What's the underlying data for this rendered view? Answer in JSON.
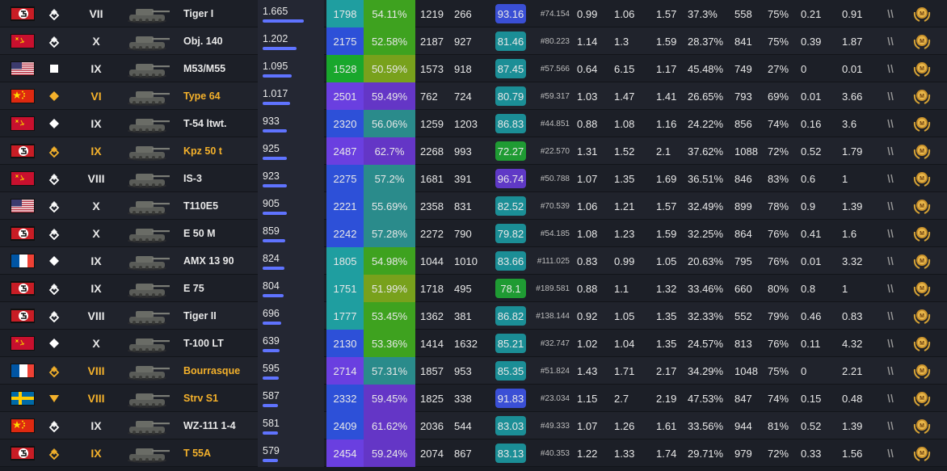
{
  "colors": {
    "premium": "#f4b12b",
    "normal": "#ffffff",
    "wn8_teal": "#1f9ea0",
    "wn8_blue": "#2d50d8",
    "wn8_green": "#19a72c",
    "wn8_purple": "#6a3fe0",
    "wr_teal": "#2a8b8b",
    "wr_green": "#3ea21f",
    "wr_olive": "#78a11c",
    "wr_purple": "#6436c6",
    "moe_purple": "#5f39c6",
    "moe_blue": "#3a4fd5",
    "moe_teal": "#1b8e96",
    "moe_green": "#1f9b33"
  },
  "rows": [
    {
      "flag": "germany",
      "class_icon": "heavy-icon",
      "tier": "VII",
      "name": "Tiger I",
      "premium": false,
      "battles": "1.665",
      "bar": 0.78,
      "wn8": "1798",
      "wr": "54.11%",
      "dmg": "1219",
      "kills": "266",
      "moe": "93.16",
      "rank": "#74.154",
      "v1": "0.99",
      "v2": "1.06",
      "v3": "1.57",
      "v4": "37.3%",
      "v5": "558",
      "v6": "75%",
      "v7": "0.21",
      "v8": "0.91"
    },
    {
      "flag": "ussr",
      "class_icon": "heavy-icon",
      "tier": "X",
      "name": "Obj. 140",
      "premium": false,
      "battles": "1.202",
      "bar": 0.63,
      "wn8": "2175",
      "wr": "52.58%",
      "dmg": "2187",
      "kills": "927",
      "moe": "81.46",
      "rank": "#80.223",
      "v1": "1.14",
      "v2": "1.3",
      "v3": "1.59",
      "v4": "28.37%",
      "v5": "841",
      "v6": "75%",
      "v7": "0.39",
      "v8": "1.87"
    },
    {
      "flag": "usa",
      "class_icon": "spg-icon",
      "tier": "IX",
      "name": "M53/M55",
      "premium": false,
      "battles": "1.095",
      "bar": 0.55,
      "wn8": "1528",
      "wr": "50.59%",
      "dmg": "1573",
      "kills": "918",
      "moe": "87.45",
      "rank": "#57.566",
      "v1": "0.64",
      "v2": "6.15",
      "v3": "1.17",
      "v4": "45.48%",
      "v5": "749",
      "v6": "27%",
      "v7": "0",
      "v8": "0.01"
    },
    {
      "flag": "china",
      "class_icon": "premium-medium-icon",
      "tier": "VI",
      "name": "Type 64",
      "premium": true,
      "battles": "1.017",
      "bar": 0.51,
      "wn8": "2501",
      "wr": "59.49%",
      "dmg": "762",
      "kills": "724",
      "moe": "80.79",
      "rank": "#59.317",
      "v1": "1.03",
      "v2": "1.47",
      "v3": "1.41",
      "v4": "26.65%",
      "v5": "793",
      "v6": "69%",
      "v7": "0.01",
      "v8": "3.66"
    },
    {
      "flag": "ussr",
      "class_icon": "medium-icon",
      "tier": "IX",
      "name": "T-54 ltwt.",
      "premium": false,
      "battles": "933",
      "bar": 0.46,
      "wn8": "2320",
      "wr": "56.06%",
      "dmg": "1259",
      "kills": "1203",
      "moe": "86.83",
      "rank": "#44.851",
      "v1": "0.88",
      "v2": "1.08",
      "v3": "1.16",
      "v4": "24.22%",
      "v5": "856",
      "v6": "74%",
      "v7": "0.16",
      "v8": "3.6"
    },
    {
      "flag": "germany",
      "class_icon": "premium-heavy-icon",
      "tier": "IX",
      "name": "Kpz 50 t",
      "premium": true,
      "battles": "925",
      "bar": 0.46,
      "wn8": "2487",
      "wr": "62.7%",
      "dmg": "2268",
      "kills": "993",
      "moe": "72.27",
      "rank": "#22.570",
      "v1": "1.31",
      "v2": "1.52",
      "v3": "2.1",
      "v4": "37.62%",
      "v5": "1088",
      "v6": "72%",
      "v7": "0.52",
      "v8": "1.79"
    },
    {
      "flag": "ussr",
      "class_icon": "heavy-icon",
      "tier": "VIII",
      "name": "IS-3",
      "premium": false,
      "battles": "923",
      "bar": 0.46,
      "wn8": "2275",
      "wr": "57.2%",
      "dmg": "1681",
      "kills": "391",
      "moe": "96.74",
      "rank": "#50.788",
      "v1": "1.07",
      "v2": "1.35",
      "v3": "1.69",
      "v4": "36.51%",
      "v5": "846",
      "v6": "83%",
      "v7": "0.6",
      "v8": "1"
    },
    {
      "flag": "usa",
      "class_icon": "heavy-icon",
      "tier": "X",
      "name": "T110E5",
      "premium": false,
      "battles": "905",
      "bar": 0.45,
      "wn8": "2221",
      "wr": "55.69%",
      "dmg": "2358",
      "kills": "831",
      "moe": "82.52",
      "rank": "#70.539",
      "v1": "1.06",
      "v2": "1.21",
      "v3": "1.57",
      "v4": "32.49%",
      "v5": "899",
      "v6": "78%",
      "v7": "0.9",
      "v8": "1.39"
    },
    {
      "flag": "germany",
      "class_icon": "heavy-icon",
      "tier": "X",
      "name": "E 50 M",
      "premium": false,
      "battles": "859",
      "bar": 0.43,
      "wn8": "2242",
      "wr": "57.28%",
      "dmg": "2272",
      "kills": "790",
      "moe": "79.82",
      "rank": "#54.185",
      "v1": "1.08",
      "v2": "1.23",
      "v3": "1.59",
      "v4": "32.25%",
      "v5": "864",
      "v6": "76%",
      "v7": "0.41",
      "v8": "1.6"
    },
    {
      "flag": "france",
      "class_icon": "medium-icon",
      "tier": "IX",
      "name": "AMX 13 90",
      "premium": false,
      "battles": "824",
      "bar": 0.41,
      "wn8": "1805",
      "wr": "54.98%",
      "dmg": "1044",
      "kills": "1010",
      "moe": "83.66",
      "rank": "#111.025",
      "v1": "0.83",
      "v2": "0.99",
      "v3": "1.05",
      "v4": "20.63%",
      "v5": "795",
      "v6": "76%",
      "v7": "0.01",
      "v8": "3.32"
    },
    {
      "flag": "germany",
      "class_icon": "heavy-icon",
      "tier": "IX",
      "name": "E 75",
      "premium": false,
      "battles": "804",
      "bar": 0.4,
      "wn8": "1751",
      "wr": "51.99%",
      "dmg": "1718",
      "kills": "495",
      "moe": "78.1",
      "rank": "#189.581",
      "v1": "0.88",
      "v2": "1.1",
      "v3": "1.32",
      "v4": "33.46%",
      "v5": "660",
      "v6": "80%",
      "v7": "0.8",
      "v8": "1"
    },
    {
      "flag": "germany",
      "class_icon": "heavy-icon",
      "tier": "VIII",
      "name": "Tiger II",
      "premium": false,
      "battles": "696",
      "bar": 0.35,
      "wn8": "1777",
      "wr": "53.45%",
      "dmg": "1362",
      "kills": "381",
      "moe": "86.82",
      "rank": "#138.144",
      "v1": "0.92",
      "v2": "1.05",
      "v3": "1.35",
      "v4": "32.33%",
      "v5": "552",
      "v6": "79%",
      "v7": "0.46",
      "v8": "0.83"
    },
    {
      "flag": "ussr",
      "class_icon": "medium-icon",
      "tier": "X",
      "name": "T-100 LT",
      "premium": false,
      "battles": "639",
      "bar": 0.32,
      "wn8": "2130",
      "wr": "53.36%",
      "dmg": "1414",
      "kills": "1632",
      "moe": "85.21",
      "rank": "#32.747",
      "v1": "1.02",
      "v2": "1.04",
      "v3": "1.35",
      "v4": "24.57%",
      "v5": "813",
      "v6": "76%",
      "v7": "0.11",
      "v8": "4.32"
    },
    {
      "flag": "france",
      "class_icon": "premium-heavy-icon",
      "tier": "VIII",
      "name": "Bourrasque",
      "premium": true,
      "battles": "595",
      "bar": 0.3,
      "wn8": "2714",
      "wr": "57.31%",
      "dmg": "1857",
      "kills": "953",
      "moe": "85.35",
      "rank": "#51.824",
      "v1": "1.43",
      "v2": "1.71",
      "v3": "2.17",
      "v4": "34.29%",
      "v5": "1048",
      "v6": "75%",
      "v7": "0",
      "v8": "2.21"
    },
    {
      "flag": "sweden",
      "class_icon": "premium-td-icon",
      "tier": "VIII",
      "name": "Strv S1",
      "premium": true,
      "battles": "587",
      "bar": 0.29,
      "wn8": "2332",
      "wr": "59.45%",
      "dmg": "1825",
      "kills": "338",
      "moe": "91.83",
      "rank": "#23.034",
      "v1": "1.15",
      "v2": "2.7",
      "v3": "2.19",
      "v4": "47.53%",
      "v5": "847",
      "v6": "74%",
      "v7": "0.15",
      "v8": "0.48"
    },
    {
      "flag": "china",
      "class_icon": "heavy-icon",
      "tier": "IX",
      "name": "WZ-111 1-4",
      "premium": false,
      "battles": "581",
      "bar": 0.29,
      "wn8": "2409",
      "wr": "61.62%",
      "dmg": "2036",
      "kills": "544",
      "moe": "83.03",
      "rank": "#49.333",
      "v1": "1.07",
      "v2": "1.26",
      "v3": "1.61",
      "v4": "33.56%",
      "v5": "944",
      "v6": "81%",
      "v7": "0.52",
      "v8": "1.39"
    },
    {
      "flag": "germany",
      "class_icon": "premium-heavy-icon",
      "tier": "IX",
      "name": "T 55A",
      "premium": true,
      "battles": "579",
      "bar": 0.29,
      "wn8": "2454",
      "wr": "59.24%",
      "dmg": "2074",
      "kills": "867",
      "moe": "83.13",
      "rank": "#40.353",
      "v1": "1.22",
      "v2": "1.33",
      "v3": "1.74",
      "v4": "29.71%",
      "v5": "979",
      "v6": "72%",
      "v7": "0.33",
      "v8": "1.56"
    }
  ]
}
